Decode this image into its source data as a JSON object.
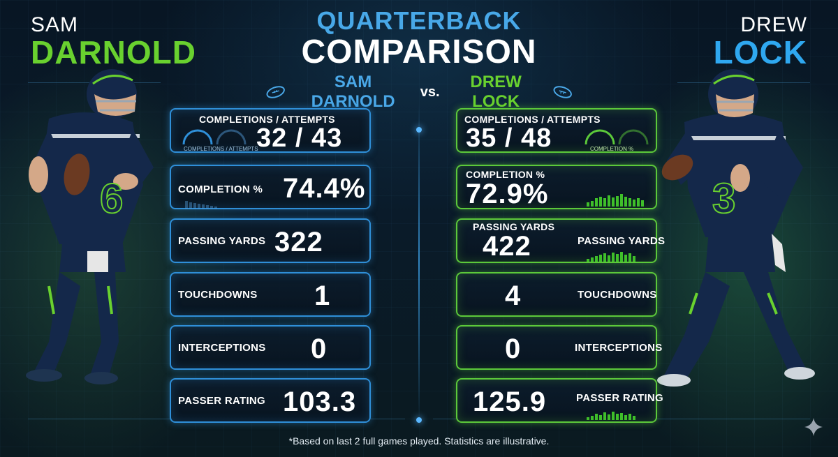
{
  "left_player": {
    "first": "SAM",
    "last": "DARNOLD",
    "jersey": "6",
    "accent": "#69d12f"
  },
  "right_player": {
    "first": "DREW",
    "last": "LOCK",
    "jersey": "3",
    "accent": "#2fa8f0"
  },
  "title": {
    "line1": "QUARTERBACK",
    "line2": "COMPARISON",
    "sub_left": "SAM DARNOLD",
    "sub_vs": "vs.",
    "sub_right": "DREW LOCK"
  },
  "icons": [
    "football-icon",
    "sparkle-icon"
  ],
  "stats": {
    "left": [
      {
        "label": "COMPLETIONS / ATTEMPTS",
        "value": "32 / 43",
        "gauge_label": "COMPLETIONS / ATTEMPTS"
      },
      {
        "label": "COMPLETION %",
        "value": "74.4%"
      },
      {
        "label": "PASSING YARDS",
        "value": "322"
      },
      {
        "label": "TOUCHDOWNS",
        "value": "1"
      },
      {
        "label": "INTERCEPTIONS",
        "value": "0"
      },
      {
        "label": "PASSER RATING",
        "value": "103.3"
      }
    ],
    "right": [
      {
        "label": "COMPLETIONS / ATTEMPTS",
        "value": "35 / 48",
        "gauge_label": "COMPLETION %"
      },
      {
        "label": "COMPLETION %",
        "value": "72.9%"
      },
      {
        "label": "PASSING YARDS",
        "value": "422",
        "label2": "PASSING YARDS"
      },
      {
        "label": "TOUCHDOWNS",
        "value": "4"
      },
      {
        "label": "INTERCEPTIONS",
        "value": "0"
      },
      {
        "label": "PASSER RATING",
        "value": "125.9"
      }
    ]
  },
  "colors": {
    "blue": "#2f8fd8",
    "green": "#5cc93a",
    "navy": "#14284a"
  },
  "footnote": "*Based on last 2 full games played. Statistics are illustrative."
}
